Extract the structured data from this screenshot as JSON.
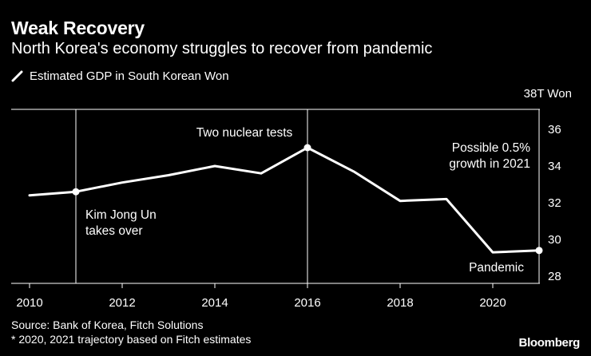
{
  "header": {
    "title": "Weak Recovery",
    "subtitle": "North Korea's economy struggles to recover from pandemic"
  },
  "chart_data": {
    "type": "line",
    "title": "Weak Recovery",
    "subtitle": "North Korea's economy struggles to recover from pandemic",
    "xlabel": "",
    "ylabel": "",
    "ylim": [
      28,
      38
    ],
    "xlim": [
      2010,
      2021
    ],
    "y_unit_label": "38T Won",
    "yticks": [
      28,
      30,
      32,
      34,
      36
    ],
    "yticks_labels": [
      "28",
      "30",
      "32",
      "34",
      "36"
    ],
    "xticks": [
      2010,
      2012,
      2014,
      2016,
      2018,
      2020
    ],
    "xticks_labels": [
      "2010",
      "2012",
      "2014",
      "2016",
      "2018",
      "2020"
    ],
    "legend": "top-left",
    "line_color": "#ffffff",
    "series": [
      {
        "name": "Estimated GDP in South Korean Won",
        "x": [
          2010,
          2011,
          2012,
          2013,
          2014,
          2015,
          2016,
          2017,
          2018,
          2019,
          2020,
          2021
        ],
        "values": [
          32.4,
          32.6,
          33.1,
          33.5,
          34.0,
          33.6,
          35.0,
          33.7,
          32.1,
          32.2,
          29.3,
          29.4
        ]
      }
    ],
    "markers": [
      {
        "x": 2011,
        "y": 32.6
      },
      {
        "x": 2016,
        "y": 35.0
      },
      {
        "x": 2021,
        "y": 29.4
      }
    ],
    "reference_lines": [
      {
        "x": 2011
      },
      {
        "x": 2016
      },
      {
        "x": 2021
      }
    ],
    "annotations": [
      {
        "name": "kim-jong-un",
        "lines": [
          "Kim Jong Un",
          "takes over"
        ]
      },
      {
        "name": "nuclear-tests",
        "lines": [
          "Two nuclear tests"
        ]
      },
      {
        "name": "possible-growth",
        "lines": [
          "Possible 0.5%",
          "growth in 2021"
        ]
      },
      {
        "name": "pandemic",
        "lines": [
          "Pandemic"
        ]
      }
    ]
  },
  "footer": {
    "source": "Source: Bank of Korea, Fitch Solutions",
    "note": "* 2020, 2021 trajectory based on Fitch estimates",
    "brand": "Bloomberg"
  }
}
